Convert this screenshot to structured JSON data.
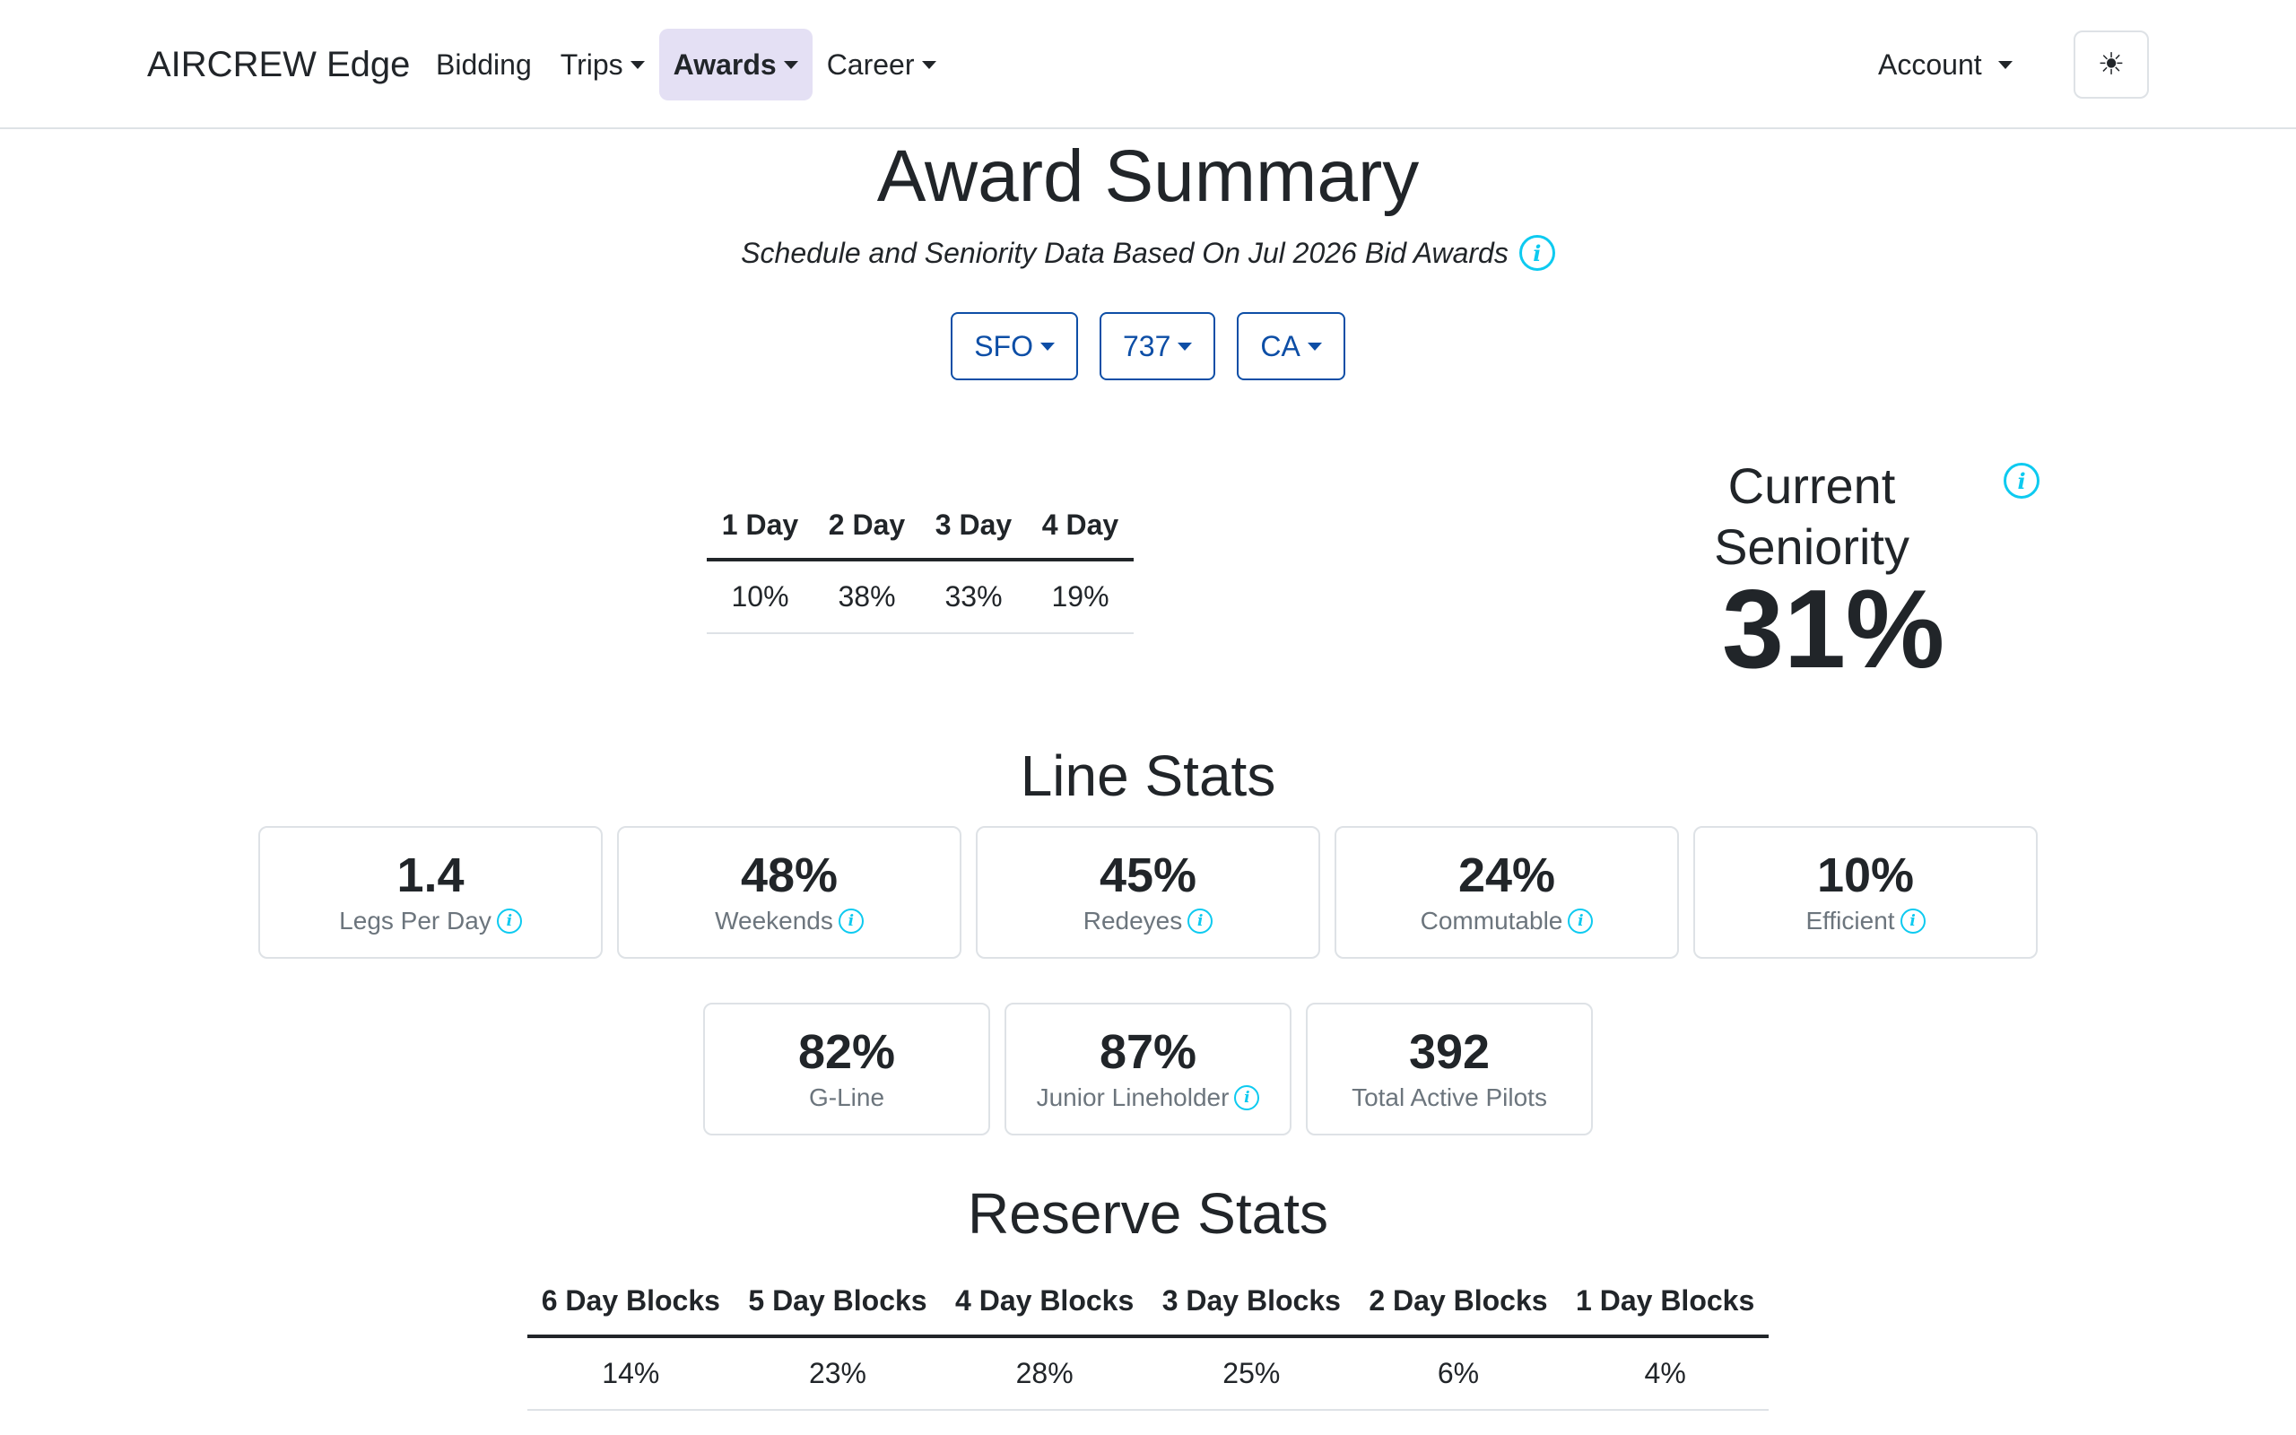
{
  "navbar": {
    "brand": "AIRCREW Edge",
    "links": [
      {
        "label": "Bidding"
      },
      {
        "label": "Trips"
      },
      {
        "label": "Awards"
      },
      {
        "label": "Career"
      }
    ],
    "account_label": "Account",
    "theme_icon": "☀"
  },
  "header": {
    "title": "Award Summary",
    "subtitle": "Schedule and Seniority Data Based On Jul 2026 Bid Awards"
  },
  "filters": {
    "base": "SFO",
    "fleet": "737",
    "seat": "CA"
  },
  "trip_length": {
    "headers": [
      "1 Day",
      "2 Day",
      "3 Day",
      "4 Day"
    ],
    "values": [
      "10%",
      "38%",
      "33%",
      "19%"
    ]
  },
  "seniority": {
    "label": "Current Seniority",
    "value": "31%"
  },
  "line_stats": {
    "title": "Line Stats",
    "cards": [
      {
        "value": "1.4",
        "label": "Legs Per Day"
      },
      {
        "value": "48%",
        "label": "Weekends"
      },
      {
        "value": "45%",
        "label": "Redeyes"
      },
      {
        "value": "24%",
        "label": "Commutable"
      },
      {
        "value": "10%",
        "label": "Efficient"
      },
      {
        "value": "82%",
        "label": "G-Line"
      },
      {
        "value": "87%",
        "label": "Junior Lineholder"
      },
      {
        "value": "392",
        "label": "Total Active Pilots"
      }
    ]
  },
  "reserve_stats": {
    "title": "Reserve Stats",
    "headers": [
      "6 Day Blocks",
      "5 Day Blocks",
      "4 Day Blocks",
      "3 Day Blocks",
      "2 Day Blocks",
      "1 Day Blocks"
    ],
    "values": [
      "14%",
      "23%",
      "28%",
      "25%",
      "6%",
      "4%"
    ]
  },
  "colors": {
    "accent": "#0d4ea6",
    "info": "#0dcaf0",
    "active_nav_bg": "#e4e0f4"
  }
}
